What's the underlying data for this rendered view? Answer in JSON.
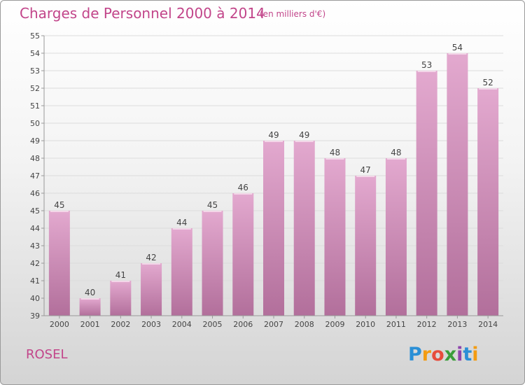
{
  "title": "Charges de Personnel 2000 à 2014",
  "subtitle": "(en milliers d'€)",
  "commune": "ROSEL",
  "logo": "Proxiti",
  "colors": {
    "accent": "#c2458a",
    "bar_top": "#e3a9cf",
    "bar_bottom": "#b26f9b"
  },
  "chart_data": {
    "type": "bar",
    "categories": [
      "2000",
      "2001",
      "2002",
      "2003",
      "2004",
      "2005",
      "2006",
      "2007",
      "2008",
      "2009",
      "2010",
      "2011",
      "2012",
      "2013",
      "2014"
    ],
    "values": [
      45,
      40,
      41,
      42,
      44,
      45,
      46,
      49,
      49,
      48,
      47,
      48,
      53,
      54,
      52
    ],
    "ylim": [
      39,
      55
    ],
    "yticks": [
      39,
      40,
      41,
      42,
      43,
      44,
      45,
      46,
      47,
      48,
      49,
      50,
      51,
      52,
      53,
      54,
      55
    ],
    "grid": true,
    "title": "Charges de Personnel 2000 à 2014",
    "xlabel": "",
    "ylabel": ""
  }
}
